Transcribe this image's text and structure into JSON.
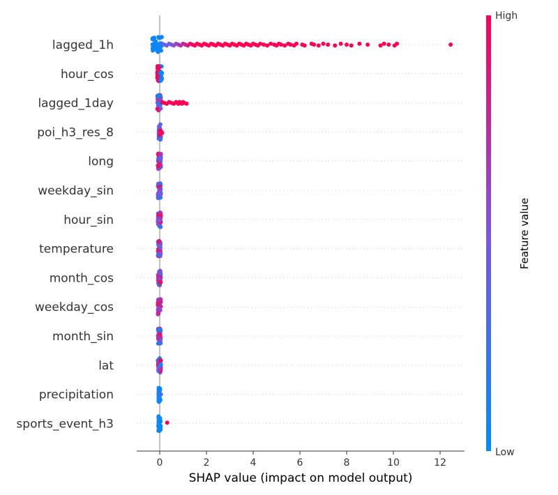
{
  "chart_data": {
    "type": "scatter",
    "subtype": "shap-beeswarm",
    "title": "",
    "xlabel": "SHAP value (impact on model output)",
    "xlim": [
      -1,
      13
    ],
    "xticks": [
      0,
      2,
      4,
      6,
      8,
      10,
      12
    ],
    "zero_line": true,
    "colorbar": {
      "title": "Feature value",
      "high_label": "High",
      "low_label": "Low",
      "high_color": "#ff0052",
      "low_color": "#008bfb"
    },
    "features": [
      {
        "name": "lagged_1h",
        "core_range": [
          -0.35,
          0.1
        ],
        "points": [
          [
            0.1,
            0.3
          ],
          [
            0.2,
            0.35
          ],
          [
            0.3,
            0.4
          ],
          [
            0.4,
            0.45
          ],
          [
            0.5,
            0.5
          ],
          [
            0.6,
            0.55
          ],
          [
            0.7,
            0.6
          ],
          [
            0.8,
            0.65
          ],
          [
            0.9,
            0.7
          ],
          [
            1.0,
            0.75
          ],
          [
            1.1,
            0.8
          ],
          [
            1.2,
            0.85
          ],
          [
            1.3,
            0.9
          ],
          [
            1.4,
            0.95
          ],
          [
            1.5,
            1
          ],
          [
            1.6,
            1
          ],
          [
            1.7,
            1
          ],
          [
            1.8,
            1
          ],
          [
            1.9,
            1
          ],
          [
            2.0,
            1
          ],
          [
            2.1,
            1
          ],
          [
            2.2,
            1
          ],
          [
            2.3,
            1
          ],
          [
            2.4,
            1
          ],
          [
            2.5,
            1
          ],
          [
            2.6,
            1
          ],
          [
            2.7,
            1
          ],
          [
            2.8,
            1
          ],
          [
            2.9,
            1
          ],
          [
            3.0,
            1
          ],
          [
            3.1,
            1
          ],
          [
            3.2,
            1
          ],
          [
            3.3,
            1
          ],
          [
            3.4,
            1
          ],
          [
            3.5,
            1
          ],
          [
            3.6,
            1
          ],
          [
            3.7,
            1
          ],
          [
            3.8,
            1
          ],
          [
            3.9,
            1
          ],
          [
            4.0,
            1
          ],
          [
            4.1,
            1
          ],
          [
            4.2,
            1
          ],
          [
            4.3,
            1
          ],
          [
            4.45,
            1
          ],
          [
            4.6,
            1
          ],
          [
            4.75,
            1
          ],
          [
            4.9,
            1
          ],
          [
            5.0,
            1
          ],
          [
            5.1,
            1
          ],
          [
            5.2,
            1
          ],
          [
            5.35,
            1
          ],
          [
            5.5,
            1
          ],
          [
            5.6,
            1
          ],
          [
            5.75,
            1
          ],
          [
            5.85,
            1
          ],
          [
            6.1,
            1
          ],
          [
            6.2,
            1
          ],
          [
            6.5,
            1
          ],
          [
            6.6,
            1
          ],
          [
            6.8,
            1
          ],
          [
            7.0,
            1
          ],
          [
            7.2,
            1
          ],
          [
            7.5,
            1
          ],
          [
            7.75,
            1
          ],
          [
            8.0,
            1
          ],
          [
            8.2,
            1
          ],
          [
            8.55,
            1
          ],
          [
            8.9,
            1
          ],
          [
            9.45,
            1
          ],
          [
            9.6,
            1
          ],
          [
            9.8,
            1
          ],
          [
            10.05,
            1
          ],
          [
            10.15,
            1
          ],
          [
            12.45,
            1
          ]
        ]
      },
      {
        "name": "hour_cos",
        "core_range": [
          -0.1,
          0.1
        ],
        "points": [
          [
            -0.1,
            1
          ],
          [
            -0.08,
            1
          ],
          [
            -0.06,
            1
          ],
          [
            -0.04,
            1
          ],
          [
            -0.03,
            0.9
          ],
          [
            -0.02,
            0.9
          ],
          [
            0.03,
            0
          ],
          [
            0.05,
            0
          ],
          [
            0.07,
            0
          ],
          [
            0.09,
            0
          ]
        ]
      },
      {
        "name": "lagged_1day",
        "core_range": [
          -0.1,
          0.05
        ],
        "points": [
          [
            0.1,
            1
          ],
          [
            0.2,
            1
          ],
          [
            0.3,
            1
          ],
          [
            0.4,
            1
          ],
          [
            0.5,
            1
          ],
          [
            0.6,
            1
          ],
          [
            0.7,
            1
          ],
          [
            0.75,
            1
          ],
          [
            0.8,
            1
          ],
          [
            0.85,
            1
          ],
          [
            0.9,
            1
          ],
          [
            0.95,
            1
          ],
          [
            1.0,
            1
          ],
          [
            1.05,
            1
          ],
          [
            1.15,
            1
          ]
        ]
      },
      {
        "name": "poi_h3_res_8",
        "core_range": [
          -0.05,
          0.05
        ],
        "points": [
          [
            0.05,
            1
          ],
          [
            0.08,
            1
          ],
          [
            0.1,
            1
          ]
        ]
      },
      {
        "name": "long",
        "core_range": [
          -0.08,
          0.05
        ],
        "points": [
          [
            0.0,
            0.8
          ],
          [
            0.02,
            1
          ],
          [
            -0.02,
            0.9
          ],
          [
            0.03,
            0.3
          ]
        ]
      },
      {
        "name": "weekday_sin",
        "core_range": [
          -0.08,
          0.05
        ],
        "points": [
          [
            0.0,
            0.6
          ],
          [
            0.02,
            0.7
          ],
          [
            -0.02,
            0.5
          ]
        ]
      },
      {
        "name": "hour_sin",
        "core_range": [
          -0.08,
          0.05
        ],
        "points": [
          [
            0.0,
            0.6
          ],
          [
            0.02,
            0.8
          ],
          [
            -0.02,
            0.5
          ]
        ]
      },
      {
        "name": "temperature",
        "core_range": [
          -0.08,
          0.05
        ],
        "points": [
          [
            0.0,
            0.8
          ],
          [
            0.02,
            1
          ],
          [
            -0.02,
            0.9
          ],
          [
            0.03,
            0.4
          ]
        ]
      },
      {
        "name": "month_cos",
        "core_range": [
          -0.08,
          0.05
        ],
        "points": [
          [
            0.0,
            0.8
          ],
          [
            0.02,
            0.9
          ],
          [
            -0.02,
            0.6
          ]
        ]
      },
      {
        "name": "weekday_cos",
        "core_range": [
          -0.08,
          0.05
        ],
        "points": [
          [
            0.0,
            0.8
          ],
          [
            0.02,
            0.9
          ],
          [
            -0.02,
            0.6
          ]
        ]
      },
      {
        "name": "month_sin",
        "core_range": [
          -0.08,
          0.05
        ],
        "points": [
          [
            0.0,
            0.9
          ],
          [
            0.02,
            1
          ],
          [
            -0.02,
            0.8
          ]
        ]
      },
      {
        "name": "lat",
        "core_range": [
          -0.08,
          0.05
        ],
        "points": [
          [
            0.0,
            0.9
          ],
          [
            0.02,
            1
          ],
          [
            -0.02,
            0.3
          ],
          [
            0.05,
            0.1
          ]
        ]
      },
      {
        "name": "precipitation",
        "core_range": [
          -0.05,
          0.03
        ],
        "points": [
          [
            0.0,
            0.1
          ],
          [
            0.05,
            0.3
          ]
        ]
      },
      {
        "name": "sports_event_h3",
        "core_range": [
          -0.06,
          0.04
        ],
        "points": [
          [
            0.32,
            1
          ]
        ]
      }
    ]
  }
}
